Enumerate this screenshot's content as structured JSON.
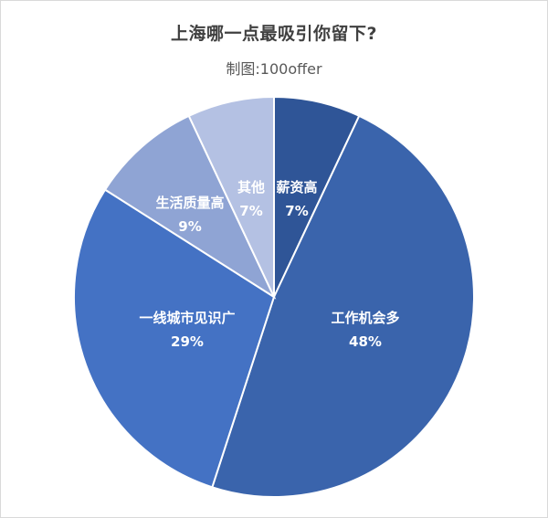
{
  "chart_data": {
    "type": "pie",
    "title": "上海哪一点最吸引你留下?",
    "subtitle": "制图:100offer",
    "slices": [
      {
        "label": "薪资高",
        "value": 7,
        "value_label": "7%",
        "color": "#2f5597"
      },
      {
        "label": "工作机会多",
        "value": 48,
        "value_label": "48%",
        "color": "#3a64ac"
      },
      {
        "label": "一线城市见识广",
        "value": 29,
        "value_label": "29%",
        "color": "#4472c4"
      },
      {
        "label": "生活质量高",
        "value": 9,
        "value_label": "9%",
        "color": "#8fa4d4"
      },
      {
        "label": "其他",
        "value": 7,
        "value_label": "7%",
        "color": "#b4c1e3"
      }
    ],
    "start_angle": "12 o'clock",
    "direction": "clockwise",
    "legend": "none"
  }
}
